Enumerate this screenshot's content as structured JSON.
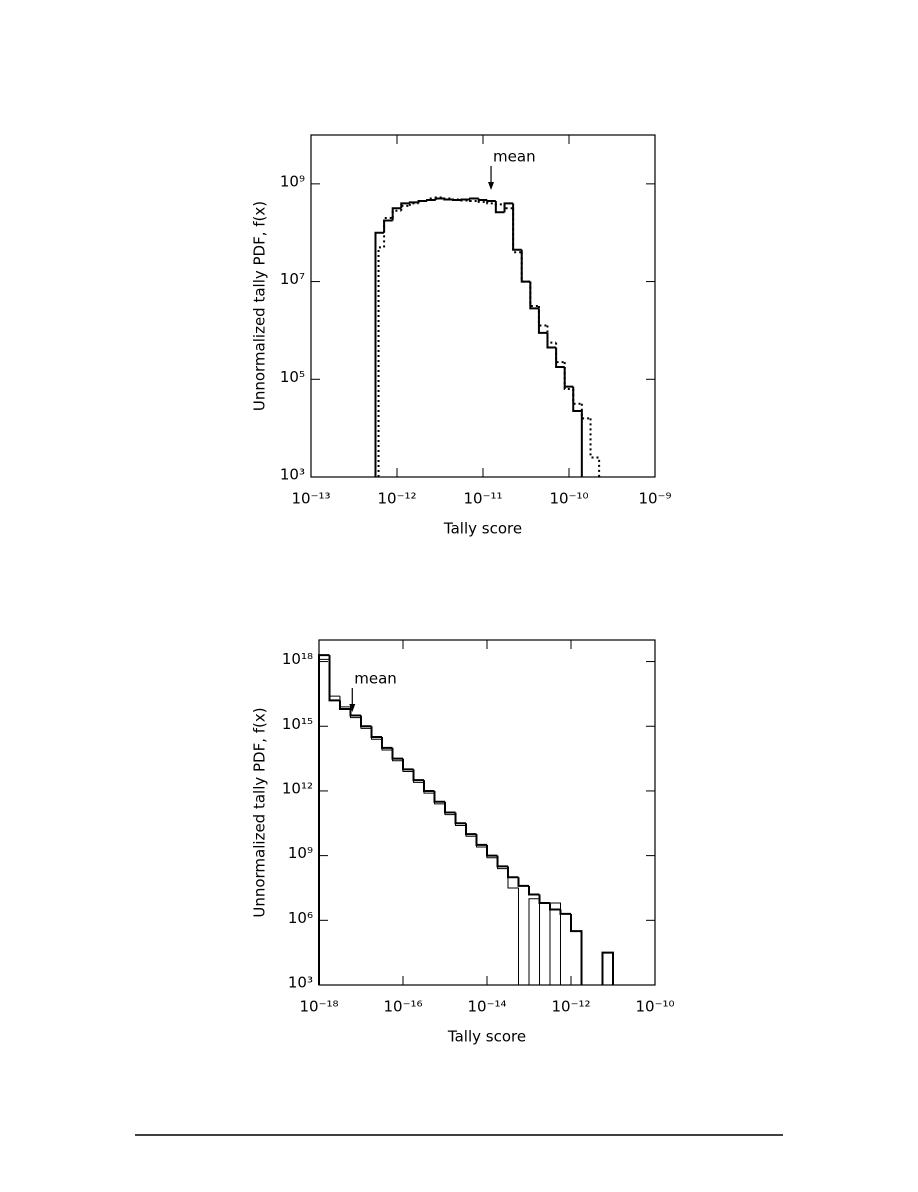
{
  "chart_data": [
    {
      "type": "histogram",
      "xscale": "log",
      "yscale": "log",
      "xlabel": "Tally score",
      "ylabel": "Unnormalized tally PDF, f(x)",
      "xlim": [
        1e-13,
        1e-09
      ],
      "ylim": [
        1000.0,
        10000000000.0
      ],
      "xticks": [
        {
          "value": 1e-13,
          "label": "10⁻¹³"
        },
        {
          "value": 1e-12,
          "label": "10⁻¹²"
        },
        {
          "value": 1e-11,
          "label": "10⁻¹¹"
        },
        {
          "value": 1e-10,
          "label": "10⁻¹⁰"
        },
        {
          "value": 1e-09,
          "label": "10⁻⁹"
        }
      ],
      "yticks": [
        {
          "value": 1000.0,
          "label": "10³"
        },
        {
          "value": 100000.0,
          "label": "10⁵"
        },
        {
          "value": 10000000.0,
          "label": "10⁷"
        },
        {
          "value": 1000000000.0,
          "label": "10⁹"
        }
      ],
      "annotations": [
        {
          "text": "mean",
          "x": 1.24e-11
        }
      ],
      "series": [
        {
          "color": "#000000",
          "style": "solid",
          "width": 2,
          "bins": [
            5.62e-13,
            7.08e-13,
            8.91e-13,
            1.12e-12,
            1.41e-12,
            1.78e-12,
            2.24e-12,
            2.82e-12,
            3.55e-12,
            4.47e-12,
            5.62e-12,
            7.08e-12,
            8.91e-12,
            1.12e-11,
            1.41e-11,
            1.78e-11,
            2.24e-11,
            2.82e-11,
            3.55e-11,
            4.47e-11,
            5.62e-11,
            7.08e-11,
            8.91e-11,
            1.12e-10,
            1.41e-10
          ],
          "values": [
            100000000.0,
            178000000.0,
            316000000.0,
            398000000.0,
            417000000.0,
            447000000.0,
            468000000.0,
            501000000.0,
            479000000.0,
            468000000.0,
            479000000.0,
            501000000.0,
            468000000.0,
            447000000.0,
            263000000.0,
            398000000.0,
            44700000.0,
            10000000.0,
            2820000.0,
            891000.0,
            447000.0,
            178000.0,
            70800.0,
            22400.0
          ]
        },
        {
          "color": "#000000",
          "style": "dotted",
          "width": 2,
          "bins": [
            6.1e-13,
            7.08e-13,
            8.91e-13,
            1.12e-12,
            1.41e-12,
            1.78e-12,
            2.24e-12,
            2.82e-12,
            3.55e-12,
            4.47e-12,
            5.62e-12,
            7.08e-12,
            8.91e-12,
            1.12e-11,
            1.41e-11,
            1.78e-11,
            2.24e-11,
            2.82e-11,
            3.55e-11,
            4.47e-11,
            5.62e-11,
            7.08e-11,
            8.91e-11,
            1.12e-10,
            1.41e-10,
            1.78e-10,
            2.24e-10
          ],
          "values": [
            50100000.0,
            200000000.0,
            282000000.0,
            355000000.0,
            398000000.0,
            447000000.0,
            501000000.0,
            525000000.0,
            501000000.0,
            479000000.0,
            457000000.0,
            447000000.0,
            427000000.0,
            398000000.0,
            380000000.0,
            316000000.0,
            39800000.0,
            10000000.0,
            3160000.0,
            1260000.0,
            562000.0,
            224000.0,
            63100.0,
            31600.0,
            15800.0,
            2510.0
          ]
        }
      ]
    },
    {
      "type": "histogram",
      "xscale": "log",
      "yscale": "log",
      "xlabel": "Tally score",
      "ylabel": "Unnormalized tally PDF, f(x)",
      "xlim": [
        1e-18,
        1e-10
      ],
      "ylim": [
        1000.0,
        1e+19
      ],
      "xticks": [
        {
          "value": 1e-18,
          "label": "10⁻¹⁸"
        },
        {
          "value": 1e-16,
          "label": "10⁻¹⁶"
        },
        {
          "value": 1e-14,
          "label": "10⁻¹⁴"
        },
        {
          "value": 1e-12,
          "label": "10⁻¹²"
        },
        {
          "value": 1e-10,
          "label": "10⁻¹⁰"
        }
      ],
      "yticks": [
        {
          "value": 1000.0,
          "label": "10³"
        },
        {
          "value": 1000000.0,
          "label": "10⁶"
        },
        {
          "value": 1000000000.0,
          "label": "10⁹"
        },
        {
          "value": 1000000000000.0,
          "label": "10¹²"
        },
        {
          "value": 1000000000000000.0,
          "label": "10¹⁵"
        },
        {
          "value": 1e+18,
          "label": "10¹⁸"
        }
      ],
      "annotations": [
        {
          "text": "mean",
          "x": 6.2e-18
        }
      ],
      "series": [
        {
          "color": "#000000",
          "style": "solid",
          "width": 2,
          "bins": [
            1e-18,
            1.78e-18,
            3.16e-18,
            5.62e-18,
            1e-17,
            1.78e-17,
            3.16e-17,
            5.62e-17,
            1e-16,
            1.78e-16,
            3.16e-16,
            5.62e-16,
            1e-15,
            1.78e-15,
            3.16e-15,
            5.62e-15,
            1e-14,
            1.78e-14,
            3.16e-14,
            5.62e-14,
            1e-13,
            1.78e-13,
            3.16e-13,
            5.62e-13,
            1e-12,
            1.78e-12,
            3.16e-12,
            5.62e-12,
            1e-11
          ],
          "values": [
            2e+18,
            1.58e+16,
            6310000000000000.0,
            3160000000000000.0,
            1000000000000000.0,
            316000000000000.0,
            100000000000000.0,
            31600000000000.0,
            10000000000000.0,
            3160000000000.0,
            1000000000000.0,
            316000000000.0,
            100000000000.0,
            31600000000.0,
            10000000000.0,
            3160000000.0,
            1000000000.0,
            316000000.0,
            100000000.0,
            39800000.0,
            15800000.0,
            6310000.0,
            3160000.0,
            2000000.0,
            316000.0,
            null,
            null,
            31600.0
          ]
        },
        {
          "color": "#000000",
          "style": "solid",
          "width": 1,
          "bins": [
            1e-18,
            1.78e-18,
            3.16e-18,
            5.62e-18,
            1e-17,
            1.78e-17,
            3.16e-17,
            5.62e-17,
            1e-16,
            1.78e-16,
            3.16e-16,
            5.62e-16,
            1e-15,
            1.78e-15,
            3.16e-15,
            5.62e-15,
            1e-14,
            1.78e-14,
            3.16e-14,
            5.62e-14,
            1e-13,
            1.78e-13,
            3.16e-13,
            5.62e-13
          ],
          "values": [
            1.26e+18,
            2.51e+16,
            7940000000000000.0,
            2510000000000000.0,
            794000000000000.0,
            251000000000000.0,
            79400000000000.0,
            25100000000000.0,
            7940000000000.0,
            2510000000000.0,
            794000000000.0,
            251000000000.0,
            79400000000.0,
            25100000000.0,
            7940000000.0,
            2510000000.0,
            794000000.0,
            251000000.0,
            31600000.0,
            null,
            10000000.0,
            null,
            6310000.0
          ]
        }
      ]
    }
  ]
}
